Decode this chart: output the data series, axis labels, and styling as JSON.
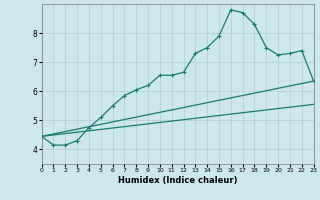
{
  "xlabel": "Humidex (Indice chaleur)",
  "xlim": [
    0,
    23
  ],
  "ylim": [
    3.5,
    9.0
  ],
  "yticks": [
    4,
    5,
    6,
    7,
    8
  ],
  "xticks": [
    0,
    1,
    2,
    3,
    4,
    5,
    6,
    7,
    8,
    9,
    10,
    11,
    12,
    13,
    14,
    15,
    16,
    17,
    18,
    19,
    20,
    21,
    22,
    23
  ],
  "bg_color": "#cce8ed",
  "grid_color": "#aacfd6",
  "line_color": "#1a7a6e",
  "line1_straight": {
    "x": [
      0,
      23
    ],
    "y": [
      4.45,
      6.35
    ]
  },
  "line2_straight": {
    "x": [
      0,
      23
    ],
    "y": [
      4.45,
      5.55
    ]
  },
  "line3_jagged": {
    "x": [
      0,
      1,
      2,
      3,
      4,
      5,
      6,
      7,
      8,
      9,
      10,
      11,
      12,
      13,
      14,
      15,
      16,
      17,
      18,
      19,
      20,
      21,
      22,
      23
    ],
    "y": [
      4.45,
      4.15,
      4.15,
      4.3,
      4.75,
      5.1,
      5.5,
      5.85,
      6.05,
      6.2,
      6.55,
      6.55,
      6.65,
      7.3,
      7.5,
      7.9,
      8.8,
      8.7,
      8.3,
      7.5,
      7.25,
      7.3,
      7.4,
      6.35
    ]
  }
}
